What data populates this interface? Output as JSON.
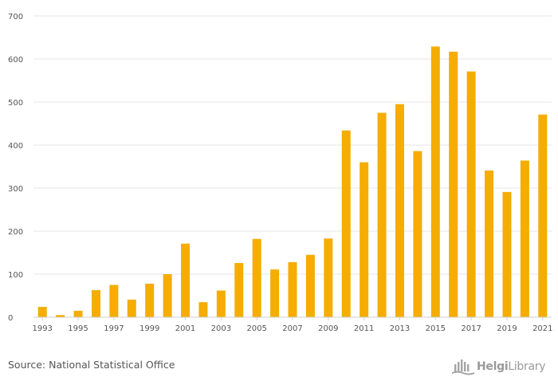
{
  "chart_data": {
    "type": "bar",
    "title": "",
    "xlabel": "",
    "ylabel": "",
    "categories": [
      "1993",
      "1994",
      "1995",
      "1996",
      "1997",
      "1998",
      "1999",
      "2000",
      "2001",
      "2002",
      "2003",
      "2004",
      "2005",
      "2006",
      "2007",
      "2008",
      "2009",
      "2010",
      "2011",
      "2012",
      "2013",
      "2014",
      "2015",
      "2016",
      "2017",
      "2018",
      "2019",
      "2020",
      "2021"
    ],
    "values": [
      24,
      5,
      15,
      63,
      75,
      41,
      78,
      100,
      171,
      35,
      62,
      126,
      182,
      111,
      128,
      145,
      183,
      434,
      360,
      475,
      495,
      386,
      629,
      617,
      571,
      341,
      291,
      364,
      471
    ],
    "xtick_labels": [
      "1993",
      "1995",
      "1997",
      "1999",
      "2001",
      "2003",
      "2005",
      "2007",
      "2009",
      "2011",
      "2013",
      "2015",
      "2017",
      "2019",
      "2021"
    ],
    "ylim": [
      0,
      700
    ],
    "yticks": [
      0,
      100,
      200,
      300,
      400,
      500,
      600,
      700
    ],
    "grid": true,
    "legend": "none",
    "bar_color": "#f4ad00"
  },
  "footer": {
    "source": "Source: National Statistical Office",
    "logo_text_a": "Helgi",
    "logo_text_b": "Library",
    "logo_icon": "helgi-library-logo-icon"
  }
}
